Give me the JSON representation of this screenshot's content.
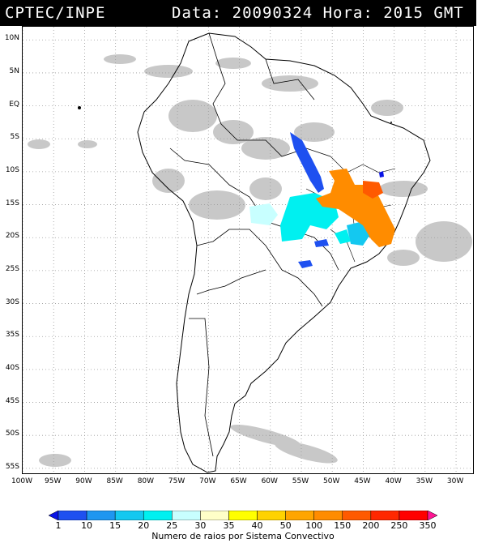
{
  "header": {
    "source": "CPTEC/INPE",
    "datetime": "Data: 20090324 Hora: 2015 GMT"
  },
  "map": {
    "lat_labels": [
      "10N",
      "5N",
      "EQ",
      "5S",
      "10S",
      "15S",
      "20S",
      "25S",
      "30S",
      "35S",
      "40S",
      "45S",
      "50S",
      "55S"
    ],
    "lat_values": [
      10,
      5,
      0,
      -5,
      -10,
      -15,
      -20,
      -25,
      -30,
      -35,
      -40,
      -45,
      -50,
      -55
    ],
    "lon_labels": [
      "100W",
      "95W",
      "90W",
      "85W",
      "80W",
      "75W",
      "70W",
      "65W",
      "60W",
      "55W",
      "50W",
      "45W",
      "40W",
      "35W",
      "30W"
    ],
    "lon_values": [
      -100,
      -95,
      -90,
      -85,
      -80,
      -75,
      -70,
      -65,
      -60,
      -55,
      -50,
      -45,
      -40,
      -35,
      -30
    ],
    "extent": {
      "lon_min": -100,
      "lon_max": -27,
      "lat_min": -56,
      "lat_max": 12
    },
    "colors": {
      "cloud": "#c8c8c8",
      "grid": "#9a9a9a",
      "coast": "#000000"
    }
  },
  "legend": {
    "caption": "Numero de raios por Sistema Convectivo",
    "labels": [
      "1",
      "10",
      "15",
      "20",
      "25",
      "30",
      "35",
      "40",
      "50",
      "100",
      "150",
      "200",
      "250",
      "350"
    ],
    "colors": [
      "#0a14e6",
      "#1e50f0",
      "#1e96f0",
      "#14c8f0",
      "#00f0f0",
      "#c8ffff",
      "#ffffc8",
      "#ffff00",
      "#ffd200",
      "#ffa500",
      "#ff8c00",
      "#ff5a00",
      "#ff2800",
      "#ff0000",
      "#ff1493"
    ]
  }
}
